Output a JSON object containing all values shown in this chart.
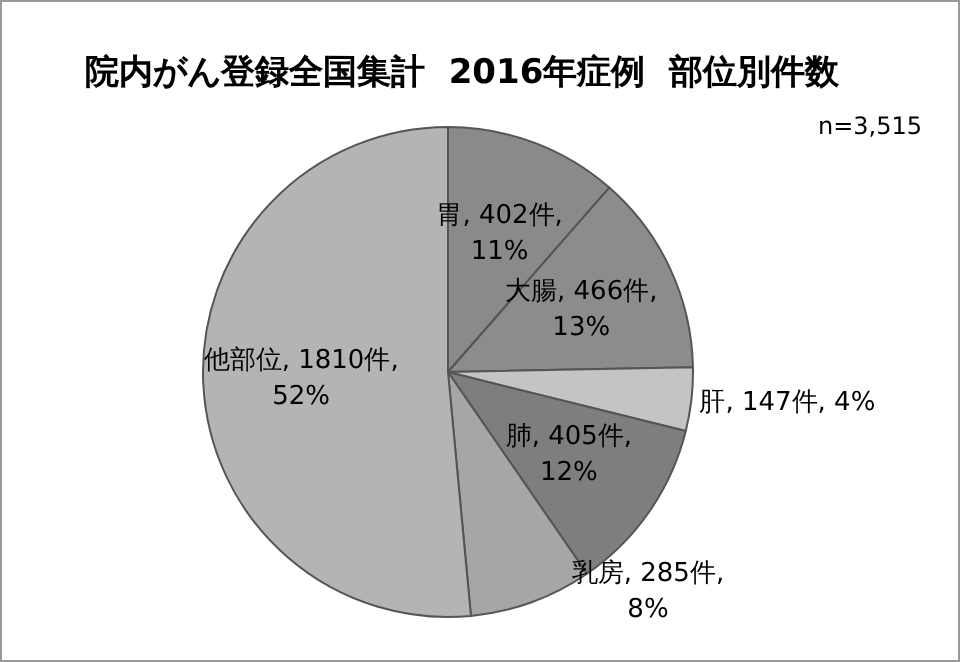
{
  "chart_data": {
    "type": "pie",
    "title": "院内がん登録全国集計  2016年症例  部位別件数",
    "categories": [
      "胃",
      "大腸",
      "肝",
      "肺",
      "乳房",
      "他部位"
    ],
    "values": [
      402,
      466,
      147,
      405,
      285,
      1810
    ],
    "value_labels": [
      "402件, 11%",
      "466件, 13%",
      "147件, 4%",
      "405件, 12%",
      "285件, 8%",
      "1810件, 52%"
    ],
    "colors": [
      "#8a8a8a",
      "#8c8c8c",
      "#c4c4c4",
      "#7e7e7e",
      "#a6a6a6",
      "#b4b4b4"
    ],
    "annotations": [
      "n=3,515"
    ],
    "legend": false
  }
}
